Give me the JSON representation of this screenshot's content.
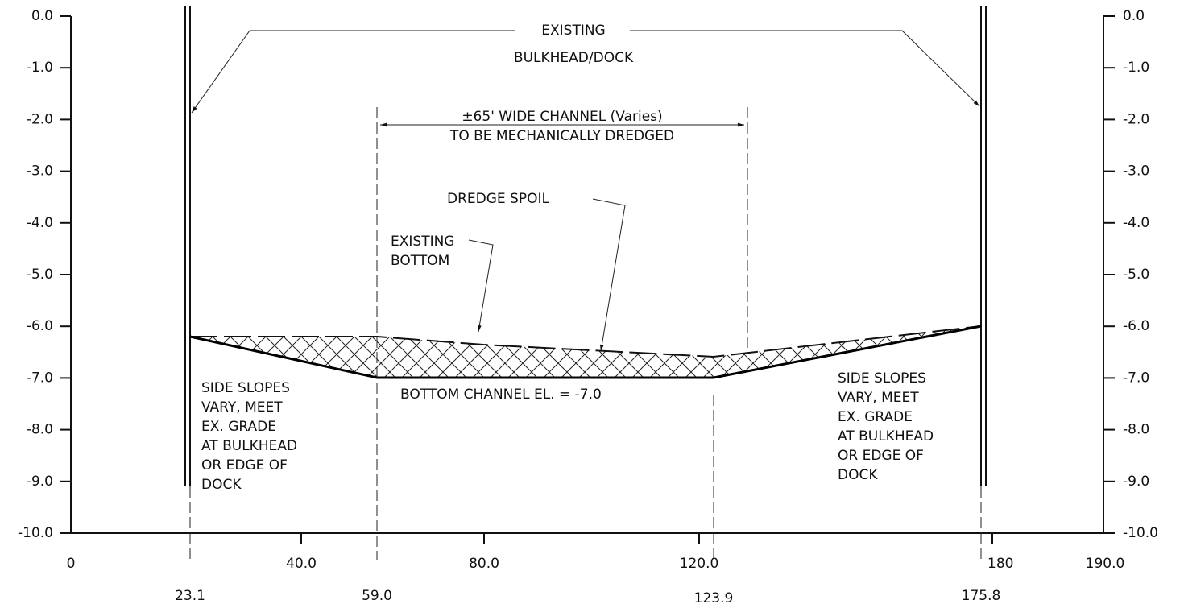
{
  "left_axis": [
    "0.0",
    "-1.0",
    "-2.0",
    "-3.0",
    "-4.0",
    "-5.0",
    "-6.0",
    "-7.0",
    "-8.0",
    "-9.0",
    "-10.0"
  ],
  "right_axis": [
    "0.0",
    "-1.0",
    "-2.0",
    "-3.0",
    "-4.0",
    "-5.0",
    "-6.0",
    "-7.0",
    "-8.0",
    "-9.0",
    "-10.0"
  ],
  "x_axis": [
    "0",
    "40.0",
    "80.0",
    "120.0",
    "180",
    "190.0"
  ],
  "stations": [
    "23.1",
    "59.0",
    "123.9",
    "175.8"
  ],
  "labels": {
    "existing_bulkhead": [
      "EXISTING",
      "BULKHEAD/DOCK"
    ],
    "channel": [
      "±65' WIDE CHANNEL (Varies)",
      "TO BE MECHANICALLY DREDGED"
    ],
    "dredge_spoil": "DREDGE SPOIL",
    "existing_bottom": [
      "EXISTING",
      "BOTTOM"
    ],
    "bottom_channel": "BOTTOM CHANNEL EL. = -7.0",
    "side_slopes_left": [
      "SIDE SLOPES",
      "VARY, MEET",
      "EX. GRADE",
      "AT BULKHEAD",
      "OR EDGE OF",
      "DOCK"
    ],
    "side_slopes_right": [
      "SIDE SLOPES",
      "VARY, MEET",
      "EX. GRADE",
      "AT BULKHEAD",
      "OR EDGE OF",
      "DOCK"
    ]
  }
}
